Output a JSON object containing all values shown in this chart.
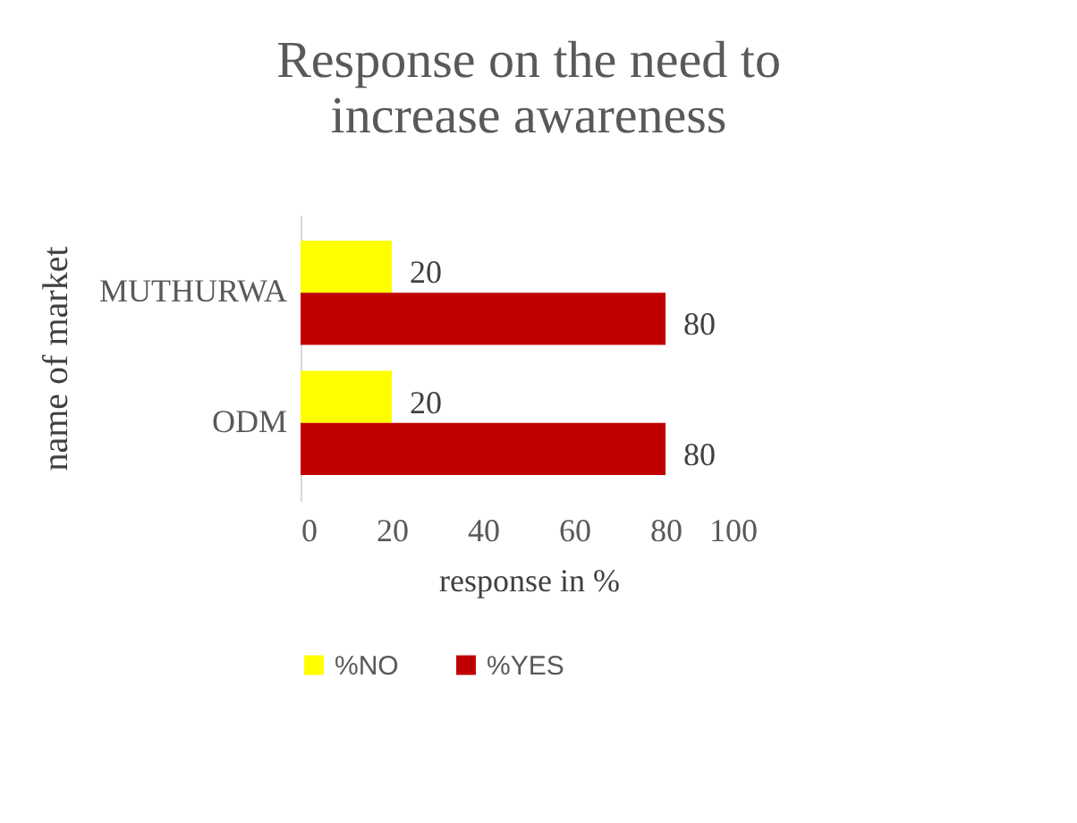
{
  "chart_data": {
    "type": "bar",
    "orientation": "horizontal",
    "title": "Response on the need to increase awareness",
    "xlabel": "response in %",
    "ylabel": "name of market",
    "categories": [
      "MUTHURWA",
      "ODM"
    ],
    "series": [
      {
        "name": "%NO",
        "color": "#ffff00",
        "values": [
          20,
          20
        ]
      },
      {
        "name": "%YES",
        "color": "#c00000",
        "values": [
          80,
          80
        ]
      }
    ],
    "xlim": [
      0,
      100
    ],
    "xticks": [
      0,
      20,
      40,
      60,
      80,
      100
    ],
    "grid": false,
    "legend": "bottom",
    "data_labels": true
  }
}
